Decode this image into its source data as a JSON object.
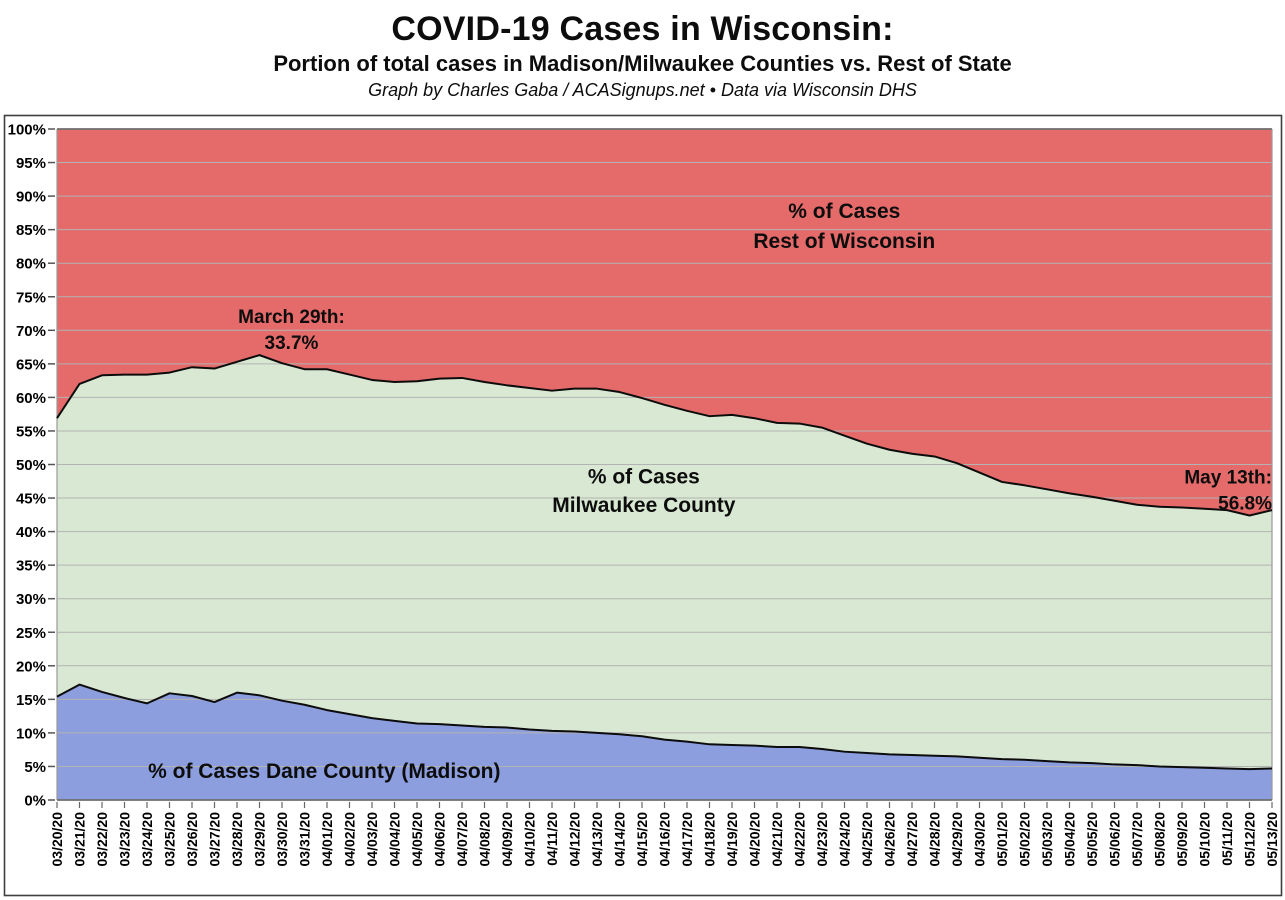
{
  "header": {
    "title": "COVID-19 Cases in Wisconsin:",
    "subtitle": "Portion of total cases in Madison/Milwaukee Counties vs. Rest of State",
    "credit": "Graph by Charles Gaba / ACASignups.net  •  Data via Wisconsin DHS"
  },
  "chart_data": {
    "type": "area",
    "stacked": true,
    "title": "COVID-19 Cases in Wisconsin: Portion of total cases in Madison/Milwaukee Counties vs. Rest of State",
    "xlabel": "",
    "ylabel": "",
    "ylim": [
      0,
      100
    ],
    "grid": true,
    "legend_position": "none",
    "y_ticks": [
      "0%",
      "5%",
      "10%",
      "15%",
      "20%",
      "25%",
      "30%",
      "35%",
      "40%",
      "45%",
      "50%",
      "55%",
      "60%",
      "65%",
      "70%",
      "75%",
      "80%",
      "85%",
      "90%",
      "95%",
      "100%"
    ],
    "x": [
      "03/20/20",
      "03/21/20",
      "03/22/20",
      "03/23/20",
      "03/24/20",
      "03/25/20",
      "03/26/20",
      "03/27/20",
      "03/28/20",
      "03/29/20",
      "03/30/20",
      "03/31/20",
      "04/01/20",
      "04/02/20",
      "04/03/20",
      "04/04/20",
      "04/05/20",
      "04/06/20",
      "04/07/20",
      "04/08/20",
      "04/09/20",
      "04/10/20",
      "04/11/20",
      "04/12/20",
      "04/13/20",
      "04/14/20",
      "04/15/20",
      "04/16/20",
      "04/17/20",
      "04/18/20",
      "04/19/20",
      "04/20/20",
      "04/21/20",
      "04/22/20",
      "04/23/20",
      "04/24/20",
      "04/25/20",
      "04/26/20",
      "04/27/20",
      "04/28/20",
      "04/29/20",
      "04/30/20",
      "05/01/20",
      "05/02/20",
      "05/03/20",
      "05/04/20",
      "05/05/20",
      "05/06/20",
      "05/07/20",
      "05/08/20",
      "05/09/20",
      "05/10/20",
      "05/11/20",
      "05/12/20",
      "05/13/20"
    ],
    "series": [
      {
        "name": "% of Cases Dane County (Madison)",
        "color": "#8c9ede",
        "values": [
          15.4,
          17.2,
          16.1,
          15.2,
          14.4,
          15.9,
          15.5,
          14.6,
          16.0,
          15.6,
          14.8,
          14.2,
          13.4,
          12.8,
          12.2,
          11.8,
          11.4,
          11.3,
          11.1,
          10.9,
          10.8,
          10.5,
          10.3,
          10.2,
          10.0,
          9.8,
          9.5,
          9.0,
          8.7,
          8.3,
          8.2,
          8.1,
          7.9,
          7.9,
          7.6,
          7.2,
          7.0,
          6.8,
          6.7,
          6.6,
          6.5,
          6.3,
          6.1,
          6.0,
          5.8,
          5.6,
          5.5,
          5.3,
          5.2,
          5.0,
          4.9,
          4.8,
          4.7,
          4.6,
          4.7
        ]
      },
      {
        "name": "% of Cases Milwaukee County",
        "color": "#d9e8d2",
        "values": [
          41.5,
          44.8,
          47.2,
          48.2,
          49.0,
          47.8,
          49.0,
          49.7,
          49.3,
          50.7,
          50.3,
          50.0,
          50.8,
          50.6,
          50.4,
          50.5,
          51.0,
          51.5,
          51.8,
          51.4,
          51.0,
          50.9,
          50.7,
          51.1,
          51.3,
          51.0,
          50.4,
          49.9,
          49.3,
          48.9,
          49.2,
          48.8,
          48.3,
          48.2,
          47.9,
          47.1,
          46.1,
          45.4,
          44.9,
          44.6,
          43.7,
          42.5,
          41.3,
          40.9,
          40.5,
          40.1,
          39.7,
          39.3,
          38.8,
          38.7,
          38.7,
          38.6,
          38.5,
          37.8,
          38.5
        ]
      },
      {
        "name": "% of Cases Rest of Wisconsin",
        "color": "#e56a6a",
        "values": [
          43.1,
          38.0,
          36.7,
          36.6,
          36.6,
          36.3,
          35.5,
          35.7,
          34.7,
          33.7,
          34.9,
          35.8,
          35.8,
          36.6,
          37.4,
          37.7,
          37.6,
          37.2,
          37.1,
          37.7,
          38.2,
          38.6,
          39.0,
          38.7,
          38.7,
          39.2,
          40.1,
          41.1,
          42.0,
          42.8,
          42.6,
          43.1,
          43.8,
          43.9,
          44.5,
          45.7,
          46.9,
          47.8,
          48.4,
          48.8,
          49.8,
          51.2,
          52.6,
          53.1,
          53.7,
          54.3,
          54.8,
          55.4,
          56.0,
          56.3,
          56.4,
          56.6,
          56.8,
          57.6,
          56.8
        ]
      }
    ],
    "annotations": [
      {
        "id": "area-label-rest-of-wisconsin",
        "lines": [
          "% of Cases",
          "Rest of Wisconsin"
        ],
        "x_frac": 0.648,
        "y_pcts": [
          86.7,
          82.3
        ],
        "anchor": "middle",
        "font_px": 21
      },
      {
        "id": "area-label-milwaukee-county",
        "lines": [
          "% of Cases",
          "Milwaukee County"
        ],
        "x_frac": 0.483,
        "y_pcts": [
          47.2,
          42.9
        ],
        "anchor": "middle",
        "font_px": 21
      },
      {
        "id": "area-label-dane-county",
        "lines": [
          "% of Cases Dane County (Madison)"
        ],
        "x_frac": 0.075,
        "y_pcts": [
          3.3
        ],
        "anchor": "start",
        "font_px": 21
      },
      {
        "id": "annotation-march-29",
        "lines": [
          "March 29th:",
          "33.7%"
        ],
        "x_frac": 0.193,
        "y_pcts": [
          71.1,
          67.2
        ],
        "anchor": "middle",
        "font_px": 19
      },
      {
        "id": "annotation-may-13",
        "lines": [
          "May 13th:",
          "56.8%"
        ],
        "x_frac": 1.0,
        "y_pcts": [
          47.2,
          43.3
        ],
        "anchor": "end",
        "font_px": 19
      }
    ]
  }
}
